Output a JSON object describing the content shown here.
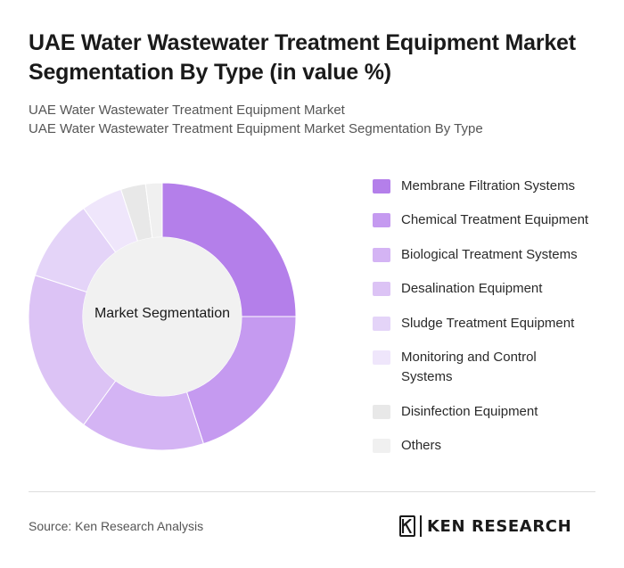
{
  "title": "UAE Water Wastewater Treatment Equipment Market Segmentation By Type (in value %)",
  "subtitle_lines": [
    "UAE Water Wastewater Treatment Equipment Market",
    "UAE Water Wastewater Treatment Equipment Market Segmentation By Type"
  ],
  "chart_data": {
    "type": "pie",
    "donut": true,
    "center_label": "Market Segmentation",
    "categories": [
      "Membrane Filtration Systems",
      "Chemical Treatment Equipment",
      "Biological Treatment Systems",
      "Desalination Equipment",
      "Sludge Treatment Equipment",
      "Monitoring and Control Systems",
      "Disinfection Equipment",
      "Others"
    ],
    "values": [
      25,
      20,
      15,
      20,
      10,
      5,
      3,
      2
    ],
    "colors": [
      "#b47fea",
      "#c59af0",
      "#d4b4f4",
      "#dcc3f5",
      "#e4d4f8",
      "#efe6fb",
      "#e8e8e8",
      "#f0f0f0"
    ],
    "legend_position": "right"
  },
  "legend_lines": [
    [
      "Membrane Filtration Systems"
    ],
    [
      "Chemical Treatment Equipment"
    ],
    [
      "Biological Treatment Systems"
    ],
    [
      "Desalination Equipment"
    ],
    [
      "Sludge Treatment Equipment"
    ],
    [
      "Monitoring and Control",
      "Systems"
    ],
    [
      "Disinfection Equipment"
    ],
    [
      "Others"
    ]
  ],
  "source": "Source: Ken Research Analysis",
  "logo_text": "KEN RESEARCH",
  "logo_icon": "ken-research-k-icon"
}
